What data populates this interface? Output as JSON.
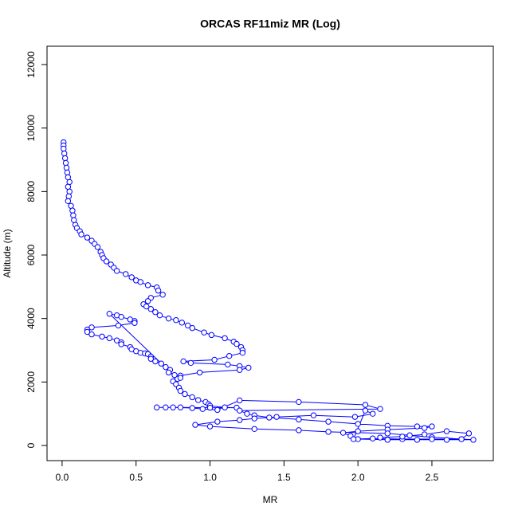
{
  "chart_data": {
    "type": "scatter",
    "title": "ORCAS RF11miz MR (Log)",
    "x_label": "MR",
    "y_label": "Altitude (m)",
    "color": "#0000ff",
    "connect": true,
    "xlim": [
      -0.102,
      2.915
    ],
    "ylim": [
      -477,
      12578
    ],
    "xticks": [
      {
        "value": 0,
        "label": "0.0"
      },
      0.5,
      {
        "value": 1,
        "label": "1.0"
      },
      1.5,
      {
        "value": 2,
        "label": "2.0"
      },
      2.5
    ],
    "yticks": [
      0,
      2000,
      4000,
      6000,
      8000,
      10000,
      12000
    ],
    "x": [
      0.01,
      0.01,
      0.01,
      0.015,
      0.02,
      0.025,
      0.03,
      0.035,
      0.04,
      0.05,
      0.04,
      0.05,
      0.045,
      0.04,
      0.06,
      0.07,
      0.075,
      0.08,
      0.09,
      0.1,
      0.12,
      0.13,
      0.17,
      0.2,
      0.22,
      0.24,
      0.26,
      0.27,
      0.28,
      0.3,
      0.33,
      0.35,
      0.37,
      0.43,
      0.47,
      0.5,
      0.53,
      0.58,
      0.64,
      0.65,
      0.68,
      0.6,
      0.58,
      0.55,
      0.57,
      0.6,
      0.63,
      0.66,
      0.72,
      0.77,
      0.81,
      0.85,
      0.88,
      0.96,
      1.01,
      1.1,
      1.16,
      1.18,
      1.21,
      1.22,
      1.22,
      1.13,
      1.03,
      0.82,
      0.87,
      1.12,
      1.2,
      1.26,
      1.2,
      0.93,
      0.8,
      0.78,
      0.32,
      0.37,
      0.4,
      0.46,
      0.49,
      0.49,
      0.38,
      0.2,
      0.17,
      0.17,
      0.2,
      0.27,
      0.32,
      0.37,
      0.4,
      0.4,
      0.46,
      0.47,
      0.5,
      0.53,
      0.56,
      0.58,
      0.6,
      0.6,
      0.63,
      0.67,
      0.7,
      0.73,
      0.72,
      0.76,
      0.8,
      0.75,
      0.77,
      0.79,
      0.8,
      0.83,
      0.88,
      0.92,
      0.97,
      0.99,
      1.0,
      1.1,
      1.18,
      1.0,
      0.8,
      0.7,
      0.64,
      0.75,
      0.88,
      0.95,
      1.05,
      1.2,
      1.6,
      2.05,
      2.15,
      1.2,
      1.25,
      1.3,
      1.4,
      1.6,
      1.8,
      2.0,
      2.2,
      2.4,
      2.5,
      2.45,
      2.2,
      2.0,
      1.9,
      1.95,
      2.0,
      2.2,
      2.4,
      2.6,
      2.78,
      2.7,
      2.5,
      2.35,
      2.2,
      1.8,
      1.6,
      1.3,
      1.0,
      0.9,
      1.05,
      1.2,
      1.3,
      1.45,
      1.7,
      1.98,
      2.1,
      2.05,
      1.97,
      2.1,
      2.3,
      2.5,
      2.7,
      2.75,
      2.6,
      2.45,
      2.3,
      2.15
    ],
    "values": [
      9550,
      9450,
      9350,
      9200,
      9050,
      8900,
      8750,
      8600,
      8450,
      8300,
      8150,
      8000,
      7850,
      7700,
      7550,
      7400,
      7250,
      7100,
      6950,
      6850,
      6750,
      6650,
      6550,
      6450,
      6350,
      6250,
      6100,
      6000,
      5900,
      5800,
      5700,
      5600,
      5500,
      5400,
      5300,
      5200,
      5150,
      5050,
      4980,
      4880,
      4750,
      4650,
      4550,
      4450,
      4380,
      4300,
      4200,
      4100,
      4000,
      3950,
      3870,
      3780,
      3700,
      3560,
      3480,
      3380,
      3270,
      3200,
      3100,
      3000,
      2920,
      2820,
      2700,
      2650,
      2600,
      2550,
      2500,
      2450,
      2380,
      2300,
      2200,
      2100,
      4150,
      4100,
      4050,
      3970,
      3920,
      3860,
      3780,
      3720,
      3650,
      3580,
      3500,
      3430,
      3380,
      3310,
      3250,
      3190,
      3100,
      3030,
      2970,
      2920,
      2900,
      2880,
      2800,
      2730,
      2650,
      2580,
      2470,
      2380,
      2300,
      2220,
      2130,
      2020,
      1930,
      1820,
      1720,
      1620,
      1520,
      1430,
      1370,
      1300,
      1250,
      1200,
      1190,
      1190,
      1200,
      1200,
      1200,
      1200,
      1180,
      1150,
      1120,
      1420,
      1370,
      1280,
      1150,
      1100,
      1000,
      950,
      880,
      820,
      750,
      680,
      620,
      600,
      600,
      550,
      500,
      450,
      400,
      300,
      200,
      180,
      180,
      180,
      180,
      200,
      260,
      320,
      380,
      430,
      480,
      520,
      600,
      650,
      750,
      800,
      850,
      900,
      950,
      900,
      1000,
      1100,
      200,
      220,
      200,
      200,
      200,
      380,
      450,
      350,
      280,
      250
    ]
  }
}
